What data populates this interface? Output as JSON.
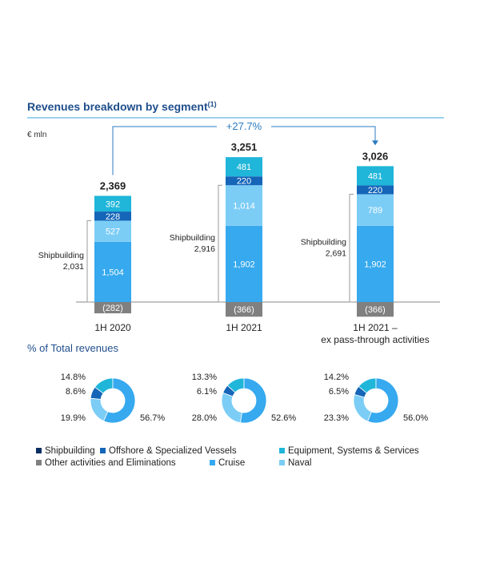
{
  "header": {
    "title": "Revenues breakdown by segment",
    "title_footnote": "(1)",
    "unit": "€ mln"
  },
  "growth_label": "+27.7%",
  "pct_title": "% of Total revenues",
  "colors": {
    "accent": "#1f4e8c",
    "rule": "#3aa6e0",
    "arrow": "#2b7bc0",
    "equipment": "#1fb6d9",
    "offshore": "#1565b8",
    "naval": "#7ccdf6",
    "cruise": "#36a9ef",
    "other": "#808080",
    "shipbuilding": "#0c2f63"
  },
  "chart_data": {
    "type": "bar",
    "stacked": true,
    "categories": [
      "1H 2020",
      "1H 2021",
      "1H 2021 –\nex pass-through activities"
    ],
    "category_lines": [
      [
        "1H 2020"
      ],
      [
        "1H 2021"
      ],
      [
        "1H 2021 –",
        "ex pass-through activities"
      ]
    ],
    "series": [
      {
        "name": "Cruise",
        "values": [
          1504,
          1902,
          1902
        ],
        "labels": [
          "1,504",
          "1,902",
          "1,902"
        ]
      },
      {
        "name": "Naval",
        "values": [
          527,
          1014,
          789
        ],
        "labels": [
          "527",
          "1,014",
          "789"
        ]
      },
      {
        "name": "Offshore & Specialized Vessels",
        "values": [
          228,
          220,
          220
        ],
        "labels": [
          "228",
          "220",
          "220"
        ]
      },
      {
        "name": "Equipment, Systems & Services",
        "values": [
          392,
          481,
          481
        ],
        "labels": [
          "392",
          "481",
          "481"
        ]
      },
      {
        "name": "Other activities and Eliminations",
        "values": [
          -282,
          -366,
          -366
        ],
        "labels": [
          "(282)",
          "(366)",
          "(366)"
        ]
      }
    ],
    "totals": [
      "2,369",
      "3,251",
      "3,026"
    ],
    "shipbuilding": [
      {
        "label": "Shipbuilding",
        "value": "2,031"
      },
      {
        "label": "Shipbuilding",
        "value": "2,916"
      },
      {
        "label": "Shipbuilding",
        "value": "2,691"
      }
    ],
    "donuts": [
      {
        "segments": [
          {
            "name": "Equipment, Systems & Services",
            "value": 14.8,
            "label": "14.8%"
          },
          {
            "name": "Offshore & Specialized Vessels",
            "value": 8.6,
            "label": "8.6%"
          },
          {
            "name": "Naval",
            "value": 19.9,
            "label": "19.9%"
          },
          {
            "name": "Cruise",
            "value": 56.7,
            "label": "56.7%"
          }
        ]
      },
      {
        "segments": [
          {
            "name": "Equipment, Systems & Services",
            "value": 13.3,
            "label": "13.3%"
          },
          {
            "name": "Offshore & Specialized Vessels",
            "value": 6.1,
            "label": "6.1%"
          },
          {
            "name": "Naval",
            "value": 28.0,
            "label": "28.0%"
          },
          {
            "name": "Cruise",
            "value": 52.6,
            "label": "52.6%"
          }
        ]
      },
      {
        "segments": [
          {
            "name": "Equipment, Systems & Services",
            "value": 14.2,
            "label": "14.2%"
          },
          {
            "name": "Offshore & Specialized Vessels",
            "value": 6.5,
            "label": "6.5%"
          },
          {
            "name": "Naval",
            "value": 23.3,
            "label": "23.3%"
          },
          {
            "name": "Cruise",
            "value": 56.0,
            "label": "56.0%"
          }
        ]
      }
    ],
    "legend": [
      {
        "name": "Shipbuilding",
        "color": "#0c2f63"
      },
      {
        "name": "Offshore & Specialized Vessels",
        "color": "#1565b8"
      },
      {
        "name": "Equipment, Systems & Services",
        "color": "#1fb6d9"
      },
      {
        "name": "Other activities and Eliminations",
        "color": "#808080"
      },
      {
        "name": "Cruise",
        "color": "#36a9ef"
      },
      {
        "name": "Naval",
        "color": "#7ccdf6"
      }
    ],
    "legend_position": "bottom",
    "grid": false
  }
}
